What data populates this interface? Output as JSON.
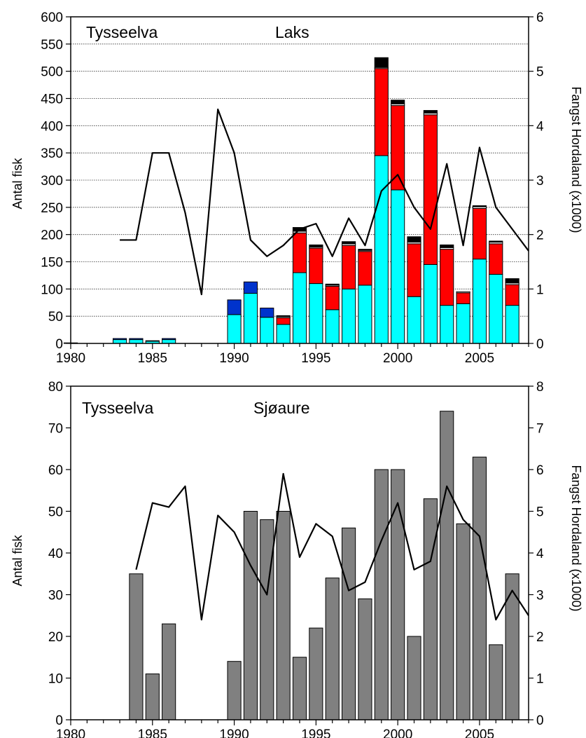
{
  "chart_data": [
    {
      "type": "bar",
      "stacked": true,
      "title": "",
      "annotations": [
        "Tysseelva",
        "Laks"
      ],
      "ylabel": "Antal fisk",
      "y2label": "Fangst Hordaland (x1000)",
      "xlim": [
        1980,
        2008
      ],
      "ylim": [
        0,
        600
      ],
      "y2lim": [
        0,
        6
      ],
      "x_ticks": [
        1980,
        1985,
        1990,
        1995,
        2000,
        2005
      ],
      "y_ticks": [
        0,
        50,
        100,
        150,
        200,
        250,
        300,
        350,
        400,
        450,
        500,
        550,
        600
      ],
      "y2_ticks": [
        0,
        1,
        2,
        3,
        4,
        5,
        6
      ],
      "grid": true,
      "years": [
        1980,
        1981,
        1982,
        1983,
        1984,
        1985,
        1986,
        1987,
        1988,
        1989,
        1990,
        1991,
        1992,
        1993,
        1994,
        1995,
        1996,
        1997,
        1998,
        1999,
        2000,
        2001,
        2002,
        2003,
        2004,
        2005,
        2006,
        2007
      ],
      "series": [
        {
          "color": "#00ffff",
          "values": [
            1,
            0,
            0,
            7,
            7,
            4,
            7,
            0,
            0,
            0,
            53,
            92,
            48,
            35,
            130,
            110,
            62,
            100,
            107,
            345,
            282,
            86,
            145,
            70,
            73,
            155,
            127,
            70
          ]
        },
        {
          "color": "#0033cc",
          "values": [
            0,
            0,
            0,
            2,
            2,
            1,
            2,
            0,
            0,
            0,
            27,
            21,
            17,
            0,
            0,
            0,
            0,
            0,
            0,
            0,
            0,
            0,
            0,
            0,
            0,
            0,
            0,
            0
          ]
        },
        {
          "color": "#ff0000",
          "values": [
            0,
            0,
            0,
            0,
            0,
            0,
            0,
            0,
            0,
            0,
            0,
            0,
            0,
            12,
            73,
            65,
            43,
            80,
            62,
            160,
            155,
            97,
            275,
            103,
            20,
            93,
            56,
            38
          ]
        },
        {
          "color": "#ffffff",
          "values": [
            0,
            0,
            0,
            0,
            0,
            0,
            0,
            0,
            0,
            0,
            0,
            0,
            0,
            2,
            3,
            2,
            2,
            3,
            2,
            2,
            3,
            3,
            3,
            3,
            2,
            3,
            3,
            3
          ]
        },
        {
          "color": "#000000",
          "values": [
            0,
            0,
            0,
            0,
            0,
            0,
            0,
            0,
            0,
            0,
            0,
            0,
            0,
            2,
            7,
            4,
            2,
            4,
            2,
            18,
            7,
            10,
            5,
            5,
            0,
            2,
            2,
            8
          ]
        }
      ],
      "line": {
        "color": "#000000",
        "x": [
          1983,
          1984,
          1985,
          1986,
          1987,
          1988,
          1989,
          1990,
          1991,
          1992,
          1993,
          1994,
          1995,
          1996,
          1997,
          1998,
          1999,
          2000,
          2001,
          2002,
          2003,
          2004,
          2005,
          2006,
          2007,
          2008
        ],
        "values": [
          1.9,
          1.9,
          3.5,
          3.5,
          2.4,
          0.9,
          4.3,
          3.5,
          1.9,
          1.6,
          1.8,
          2.1,
          2.2,
          1.6,
          2.3,
          1.8,
          2.8,
          3.1,
          2.5,
          2.1,
          3.3,
          1.8,
          3.6,
          2.5,
          2.1,
          1.7
        ]
      }
    },
    {
      "type": "bar",
      "title": "",
      "annotations": [
        "Tysseelva",
        "Sjøaure"
      ],
      "ylabel": "Antal fisk",
      "y2label": "Fangst Hordaland (x1000)",
      "xlim": [
        1980,
        2008
      ],
      "ylim": [
        0,
        80
      ],
      "y2lim": [
        0,
        8
      ],
      "x_ticks": [
        1980,
        1985,
        1990,
        1995,
        2000,
        2005
      ],
      "y_ticks": [
        0,
        10,
        20,
        30,
        40,
        50,
        60,
        70,
        80
      ],
      "y2_ticks": [
        0,
        1,
        2,
        3,
        4,
        5,
        6,
        7,
        8
      ],
      "grid": false,
      "years": [
        1980,
        1981,
        1982,
        1983,
        1984,
        1985,
        1986,
        1987,
        1988,
        1989,
        1990,
        1991,
        1992,
        1993,
        1994,
        1995,
        1996,
        1997,
        1998,
        1999,
        2000,
        2001,
        2002,
        2003,
        2004,
        2005,
        2006,
        2007
      ],
      "series": [
        {
          "color": "#808080",
          "values": [
            0,
            0,
            0,
            0,
            35,
            11,
            23,
            0,
            0,
            0,
            14,
            50,
            48,
            50,
            15,
            22,
            34,
            46,
            29,
            60,
            60,
            20,
            53,
            74,
            47,
            63,
            18,
            35
          ]
        }
      ],
      "line": {
        "color": "#000000",
        "x": [
          1984,
          1985,
          1986,
          1987,
          1988,
          1989,
          1990,
          1991,
          1992,
          1993,
          1994,
          1995,
          1996,
          1997,
          1998,
          1999,
          2000,
          2001,
          2002,
          2003,
          2004,
          2005,
          2006,
          2007,
          2008
        ],
        "values": [
          3.6,
          5.2,
          5.1,
          5.6,
          2.4,
          4.9,
          4.5,
          3.7,
          3.0,
          5.9,
          3.9,
          4.7,
          4.4,
          3.1,
          3.3,
          4.3,
          5.2,
          3.6,
          3.8,
          5.6,
          4.8,
          4.4,
          2.4,
          3.1,
          2.5
        ]
      }
    }
  ]
}
